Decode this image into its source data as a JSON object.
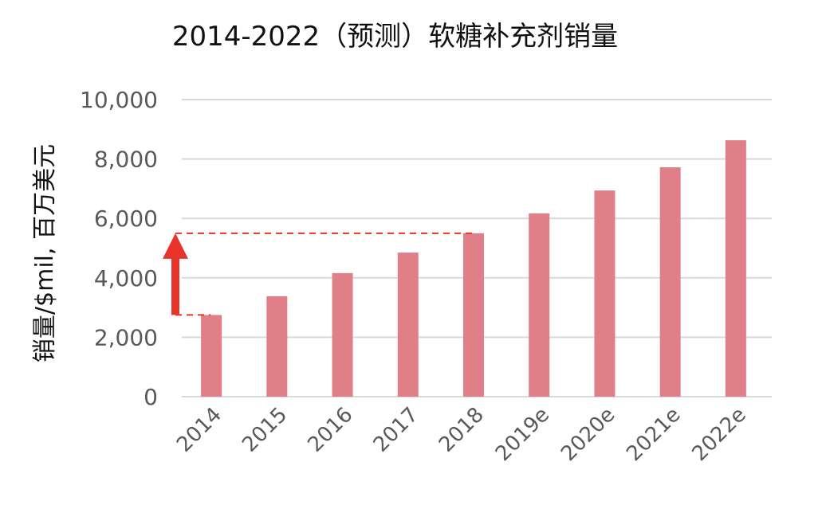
{
  "title": "2014-2022（预测）软糖补充剂销量",
  "chart_data": {
    "type": "bar",
    "title": "2014-2022（预测）软糖补充剂销量",
    "xlabel": "",
    "ylabel": "销量/$mil, 百万美元",
    "categories": [
      "2014",
      "2015",
      "2016",
      "2017",
      "2018",
      "2019e",
      "2020e",
      "2021e",
      "2022e"
    ],
    "values": [
      2750,
      3380,
      4160,
      4850,
      5500,
      6170,
      6940,
      7720,
      8630
    ],
    "ylim": [
      0,
      10000
    ],
    "yticks": [
      0,
      2000,
      4000,
      6000,
      8000,
      10000
    ],
    "ytick_labels": [
      "0",
      "2,000",
      "4,000",
      "6,000",
      "8,000",
      "10,000"
    ],
    "grid": true,
    "legend": "none",
    "bar_color": "#e07f88",
    "annotations": [
      {
        "type": "arrow-up",
        "color": "#e8342a",
        "from_value": 2750,
        "to_value": 5500,
        "description": "Red arrow showing growth from 2014 to 2018 with dashed reference lines"
      }
    ]
  },
  "colors": {
    "bar": "#e07f88",
    "grid": "#d9d9d9",
    "annotation": "#e8342a",
    "tick_text": "#595959"
  }
}
